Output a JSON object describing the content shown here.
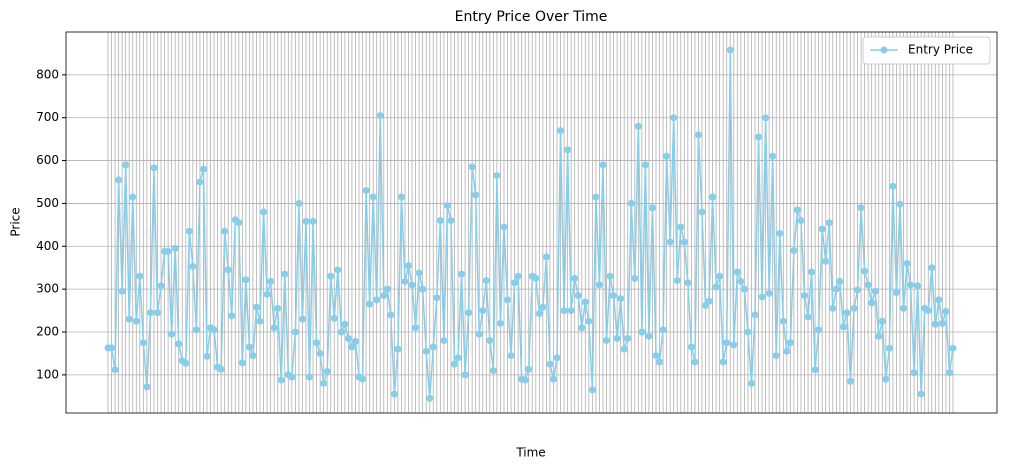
{
  "chart_data": {
    "type": "line",
    "title": "Entry Price Over Time",
    "x_label": "Time",
    "y_label": "Price",
    "series": [
      {
        "name": "Entry Price",
        "color": "#87ceeb",
        "values": [
          163,
          163,
          112,
          555,
          295,
          590,
          230,
          515,
          225,
          330,
          175,
          72,
          245,
          583,
          245,
          308,
          388,
          388,
          195,
          395,
          172,
          133,
          127,
          435,
          353,
          205,
          550,
          580,
          143,
          210,
          205,
          118,
          113,
          435,
          345,
          238,
          462,
          455,
          128,
          322,
          165,
          145,
          258,
          225,
          480,
          288,
          318,
          210,
          255,
          88,
          335,
          100,
          95,
          200,
          500,
          230,
          458,
          95,
          458,
          175,
          150,
          80,
          108,
          330,
          232,
          345,
          200,
          218,
          185,
          165,
          178,
          95,
          90,
          530,
          265,
          515,
          275,
          705,
          285,
          300,
          240,
          55,
          160,
          515,
          318,
          355,
          310,
          210,
          338,
          300,
          155,
          45,
          165,
          280,
          460,
          180,
          495,
          460,
          125,
          140,
          335,
          100,
          245,
          585,
          520,
          195,
          250,
          320,
          180,
          110,
          565,
          220,
          445,
          275,
          145,
          315,
          330,
          90,
          88,
          113,
          330,
          325,
          243,
          258,
          375,
          125,
          90,
          140,
          670,
          250,
          625,
          250,
          325,
          285,
          210,
          270,
          225,
          65,
          515,
          310,
          590,
          180,
          330,
          285,
          185,
          278,
          160,
          185,
          500,
          325,
          680,
          200,
          590,
          190,
          490,
          145,
          130,
          205,
          610,
          410,
          700,
          320,
          445,
          410,
          315,
          165,
          130,
          660,
          480,
          262,
          272,
          515,
          305,
          330,
          130,
          175,
          858,
          170,
          340,
          318,
          300,
          200,
          80,
          240,
          655,
          282,
          700,
          290,
          610,
          145,
          430,
          225,
          155,
          175,
          390,
          485,
          460,
          285,
          235,
          340,
          112,
          205,
          440,
          365,
          455,
          255,
          300,
          318,
          212,
          245,
          85,
          255,
          298,
          490,
          342,
          310,
          268,
          295,
          190,
          225,
          90,
          162,
          540,
          292,
          498,
          255,
          360,
          310,
          105,
          308,
          55,
          255,
          250,
          350,
          218,
          275,
          220,
          248,
          105,
          162
        ]
      }
    ],
    "ylim": [
      11,
      900
    ],
    "yticks": [
      100,
      200,
      300,
      400,
      500,
      600,
      700,
      800
    ],
    "grid": true,
    "legend": "upper right"
  }
}
